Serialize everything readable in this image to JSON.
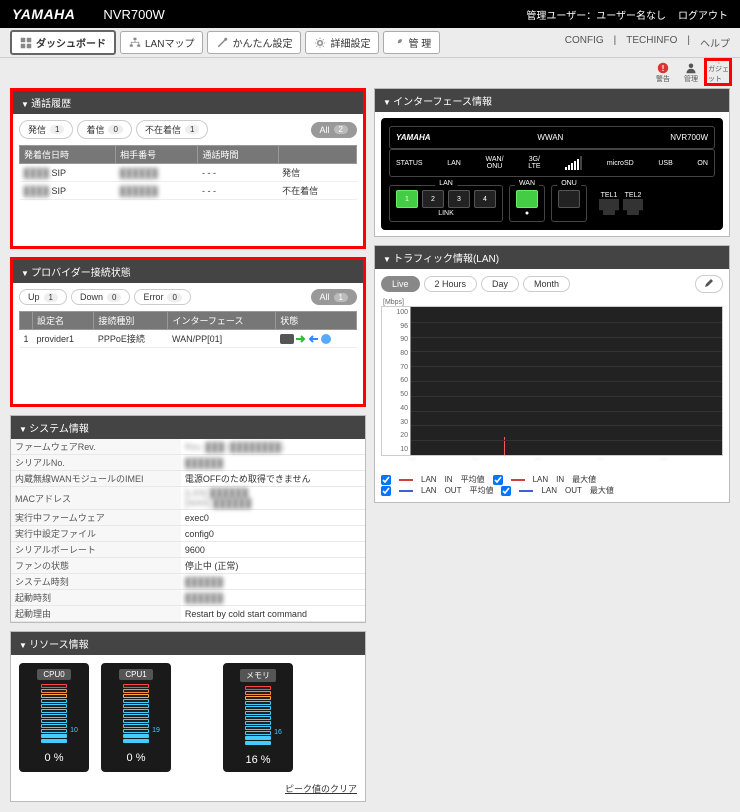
{
  "header": {
    "brand": "YAMAHA",
    "model": "NVR700W",
    "admin_label": "管理ユーザー：ユーザー名なし",
    "logout": "ログアウト"
  },
  "tabs": {
    "dashboard": "ダッシュボード",
    "lanmap": "LANマップ",
    "easy": "かんたん設定",
    "detail": "詳細設定",
    "admin": "管 理"
  },
  "toplinks": {
    "config": "CONFIG",
    "techinfo": "TECHINFO",
    "help": "ヘルプ"
  },
  "status_icons": {
    "alert": "警告",
    "mgmt": "管理",
    "gadget": "ガジェット"
  },
  "call_history": {
    "title": "通話履歴",
    "filters": {
      "out": "発信",
      "out_n": "1",
      "in": "着信",
      "in_n": "0",
      "missed": "不在着信",
      "missed_n": "1",
      "all": "All",
      "all_n": "2"
    },
    "cols": {
      "datetime": "発着信日時",
      "peer": "相手番号",
      "duration": "通話時間",
      "type": ""
    },
    "rows": [
      {
        "dt": "████",
        "proto": "SIP",
        "peer": "██████",
        "dur": "- - -",
        "type": "発信"
      },
      {
        "dt": "████",
        "proto": "SIP",
        "peer": "██████",
        "dur": "- - -",
        "type": "不在着信"
      }
    ]
  },
  "provider": {
    "title": "プロバイダー接続状態",
    "filters": {
      "up": "Up",
      "up_n": "1",
      "down": "Down",
      "down_n": "0",
      "error": "Error",
      "error_n": "0",
      "all": "All",
      "all_n": "1"
    },
    "cols": {
      "name": "設定名",
      "type": "接続種別",
      "iface": "インターフェース",
      "status": "状態"
    },
    "rows": [
      {
        "idx": "1",
        "name": "provider1",
        "type": "PPPoE接続",
        "iface": "WAN/PP[01]"
      }
    ]
  },
  "iface": {
    "title": "インターフェース情報",
    "brand": "YAMAHA",
    "wwan": "WWAN",
    "model": "NVR700W",
    "labels": {
      "status": "STATUS",
      "lan": "LAN",
      "wanonu": "WAN/\nONU",
      "lte": "3G/\nLTE",
      "microsd": "microSD",
      "usb": "USB",
      "on": "ON"
    },
    "groups": {
      "lan": "LAN",
      "wan": "WAN",
      "onu": "ONU",
      "tel1": "TEL1",
      "tel2": "TEL2",
      "link": "LINK"
    },
    "ports": [
      "1",
      "2",
      "3",
      "4"
    ]
  },
  "traffic": {
    "title": "トラフィック情報(LAN)",
    "buttons": {
      "live": "Live",
      "h2": "2 Hours",
      "day": "Day",
      "month": "Month"
    },
    "yunit": "[Mbps]",
    "yticks": [
      "100",
      "96",
      "90",
      "80",
      "70",
      "60",
      "50",
      "40",
      "30",
      "20",
      "10"
    ],
    "legend": {
      "lan": "LAN",
      "in": "IN",
      "out": "OUT",
      "avg": "平均値",
      "max": "最大値"
    },
    "colors": {
      "in_avg": "#d04040",
      "out_avg": "#4060d0",
      "in_max": "#d04040",
      "out_max": "#4060d0"
    }
  },
  "sys": {
    "title": "システム情報",
    "rows": [
      [
        "ファームウェアRev.",
        "Rev. ███ (████████)"
      ],
      [
        "シリアルNo.",
        "██████"
      ],
      [
        "内蔵無線WANモジュールのIMEI",
        "電源OFFのため取得できません"
      ],
      [
        "MACアドレス",
        "[LAN] ██████\n[WAN] ██████"
      ],
      [
        "実行中ファームウェア",
        "exec0"
      ],
      [
        "実行中設定ファイル",
        "config0"
      ],
      [
        "シリアルボーレート",
        "9600"
      ],
      [
        "ファンの状態",
        "停止中 (正常)"
      ],
      [
        "システム時刻",
        "██████"
      ],
      [
        "起動時刻",
        "██████"
      ],
      [
        "起動理由",
        "Restart by cold start command"
      ]
    ]
  },
  "resource": {
    "title": "リソース情報",
    "gauges": [
      {
        "name": "CPU0",
        "pct": "0 %",
        "side": "10"
      },
      {
        "name": "CPU1",
        "pct": "0 %",
        "side": "19"
      },
      {
        "name": "メモリ",
        "pct": "16 %",
        "side": "16"
      }
    ],
    "peak_clear": "ピーク値のクリア"
  }
}
